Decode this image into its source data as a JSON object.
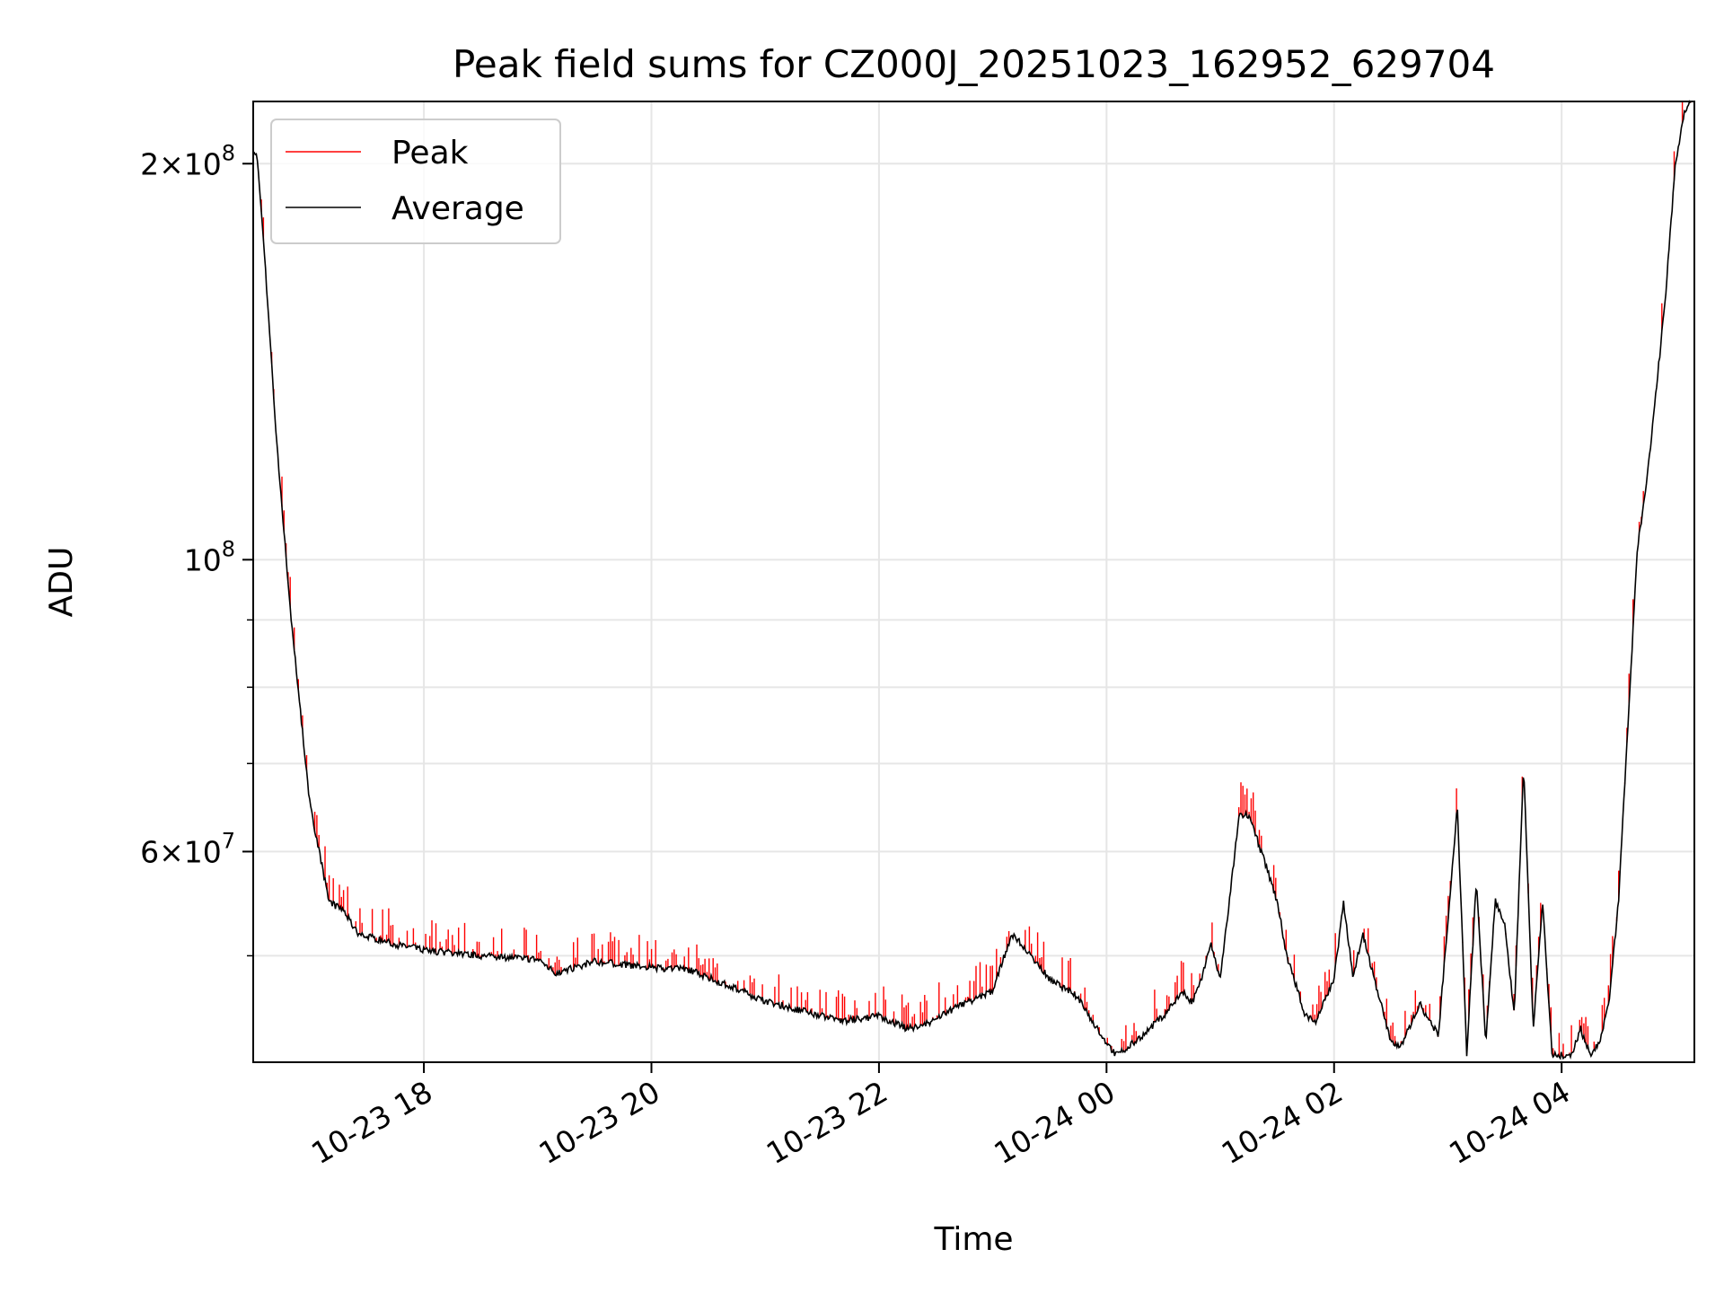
{
  "chart_data": {
    "type": "line",
    "title": "Peak field sums for CZ000J_20251023_162952_629704",
    "xlabel": "Time",
    "ylabel": "ADU",
    "yscale": "log",
    "ylim": [
      41500000,
      223000000
    ],
    "xlim": [
      "2025-10-23 16:30",
      "2025-10-24 05:10"
    ],
    "grid": true,
    "legend_position": "top-left",
    "x_ticks": [
      "10-23 18",
      "10-23 20",
      "10-23 22",
      "10-24 00",
      "10-24 02",
      "10-24 04"
    ],
    "x_tick_times": [
      "2025-10-23 18:00",
      "2025-10-23 20:00",
      "2025-10-23 22:00",
      "2025-10-24 00:00",
      "2025-10-24 02:00",
      "2025-10-24 04:00"
    ],
    "y_major_ticks": [
      {
        "value": 100000000,
        "base": "10",
        "exp": "8"
      },
      {
        "value": 200000000,
        "mant": "2",
        "base": "10",
        "exp": "8"
      },
      {
        "value": 60000000,
        "mant": "6",
        "base": "10",
        "exp": "7"
      }
    ],
    "y_minor_ticks": [
      50000000,
      70000000,
      80000000,
      90000000
    ],
    "series": [
      {
        "name": "Average",
        "color": "#000000",
        "x": [
          "2025-10-23 16:30",
          "2025-10-23 16:32",
          "2025-10-23 16:36",
          "2025-10-23 16:42",
          "2025-10-23 16:50",
          "2025-10-23 17:00",
          "2025-10-23 17:10",
          "2025-10-23 17:18",
          "2025-10-23 17:25",
          "2025-10-23 17:35",
          "2025-10-23 17:45",
          "2025-10-23 18:00",
          "2025-10-23 18:30",
          "2025-10-23 19:00",
          "2025-10-23 19:10",
          "2025-10-23 19:30",
          "2025-10-23 20:00",
          "2025-10-23 20:20",
          "2025-10-23 20:40",
          "2025-10-23 21:00",
          "2025-10-23 21:30",
          "2025-10-23 21:40",
          "2025-10-23 22:00",
          "2025-10-23 22:15",
          "2025-10-23 22:25",
          "2025-10-23 22:45",
          "2025-10-23 23:00",
          "2025-10-23 23:10",
          "2025-10-23 23:20",
          "2025-10-23 23:30",
          "2025-10-23 23:45",
          "2025-10-23 23:55",
          "2025-10-24 00:05",
          "2025-10-24 00:15",
          "2025-10-24 00:30",
          "2025-10-24 00:40",
          "2025-10-24 00:45",
          "2025-10-24 00:50",
          "2025-10-24 00:55",
          "2025-10-24 01:00",
          "2025-10-24 01:10",
          "2025-10-24 01:15",
          "2025-10-24 01:25",
          "2025-10-24 01:30",
          "2025-10-24 01:35",
          "2025-10-24 01:45",
          "2025-10-24 01:50",
          "2025-10-24 02:00",
          "2025-10-24 02:05",
          "2025-10-24 02:10",
          "2025-10-24 02:15",
          "2025-10-24 02:30",
          "2025-10-24 02:35",
          "2025-10-24 02:45",
          "2025-10-24 02:55",
          "2025-10-24 03:05",
          "2025-10-24 03:10",
          "2025-10-24 03:15",
          "2025-10-24 03:20",
          "2025-10-24 03:25",
          "2025-10-24 03:30",
          "2025-10-24 03:35",
          "2025-10-24 03:40",
          "2025-10-24 03:45",
          "2025-10-24 03:50",
          "2025-10-24 03:55",
          "2025-10-24 04:05",
          "2025-10-24 04:10",
          "2025-10-24 04:15",
          "2025-10-24 04:20",
          "2025-10-24 04:25",
          "2025-10-24 04:30",
          "2025-10-24 04:35",
          "2025-10-24 04:40",
          "2025-10-24 04:45",
          "2025-10-24 04:50",
          "2025-10-24 04:55",
          "2025-10-24 05:00",
          "2025-10-24 05:05",
          "2025-10-24 05:08"
        ],
        "values": [
          205000000,
          203000000,
          170000000,
          125000000,
          90000000,
          65000000,
          55000000,
          54000000,
          52000000,
          51500000,
          51000000,
          50500000,
          50000000,
          49700000,
          48500000,
          49500000,
          49000000,
          48800000,
          47500000,
          46200000,
          45000000,
          44600000,
          45000000,
          44000000,
          44400000,
          46000000,
          47000000,
          52000000,
          50000000,
          48000000,
          46500000,
          44000000,
          42000000,
          43000000,
          45000000,
          47000000,
          46000000,
          48000000,
          51000000,
          48000000,
          64000000,
          64000000,
          58000000,
          55000000,
          50000000,
          45000000,
          44500000,
          48000000,
          55000000,
          48000000,
          52000000,
          43000000,
          42500000,
          46000000,
          43500000,
          65000000,
          42000000,
          57000000,
          43000000,
          55000000,
          53000000,
          45000000,
          70000000,
          44000000,
          55000000,
          42000000,
          42000000,
          44000000,
          42000000,
          43000000,
          46000000,
          55000000,
          75000000,
          102000000,
          115000000,
          135000000,
          160000000,
          200000000,
          220000000,
          223000000
        ]
      },
      {
        "name": "Peak",
        "color": "#ff0000",
        "spike_max_fraction": 0.06
      }
    ]
  }
}
